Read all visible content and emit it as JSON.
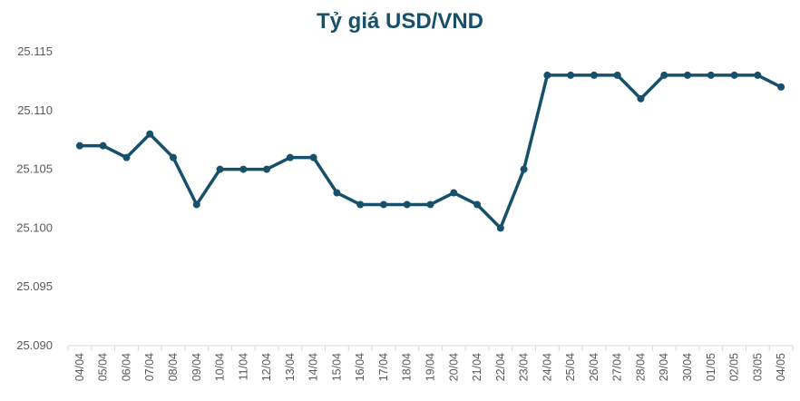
{
  "chart_data": {
    "type": "line",
    "title": "Tỷ giá USD/VND",
    "xlabel": "",
    "ylabel": "",
    "categories": [
      "04/04",
      "05/04",
      "06/04",
      "07/04",
      "08/04",
      "09/04",
      "10/04",
      "11/04",
      "12/04",
      "13/04",
      "14/04",
      "15/04",
      "16/04",
      "17/04",
      "18/04",
      "19/04",
      "20/04",
      "21/04",
      "22/04",
      "23/04",
      "24/04",
      "25/04",
      "26/04",
      "27/04",
      "28/04",
      "29/04",
      "30/04",
      "01/05",
      "02/05",
      "03/05",
      "04/05"
    ],
    "series": [
      {
        "values": [
          25.107,
          25.107,
          25.106,
          25.108,
          25.106,
          25.102,
          25.105,
          25.105,
          25.105,
          25.106,
          25.106,
          25.103,
          25.102,
          25.102,
          25.102,
          25.102,
          25.103,
          25.102,
          25.1,
          25.105,
          25.113,
          25.113,
          25.113,
          25.113,
          25.111,
          25.113,
          25.113,
          25.113,
          25.113,
          25.113,
          25.112
        ]
      }
    ],
    "ylim": [
      25.09,
      25.115
    ],
    "yticks": [
      "25.090",
      "25.095",
      "25.100",
      "25.105",
      "25.110",
      "25.115"
    ],
    "grid": false,
    "legend": "none",
    "colors": {
      "line": "#16506b",
      "title": "#16506b",
      "axis": "#d9d9d9",
      "text": "#595959"
    }
  }
}
